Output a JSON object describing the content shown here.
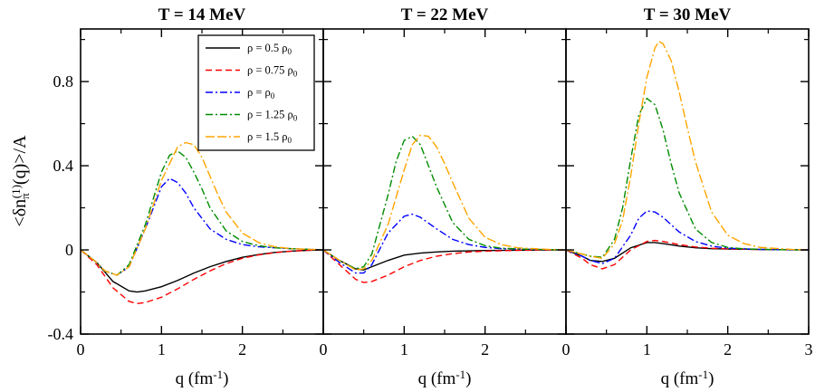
{
  "chart_data": {
    "type": "line",
    "ylabel": {
      "main": "<δn",
      "sub": "π",
      "sup": "(1)",
      "rest": "(q)>/A"
    },
    "xlabel": {
      "main": "q (fm",
      "sup": "-1",
      "rest": ")"
    },
    "xlim": [
      0,
      3
    ],
    "ylim": [
      -0.4,
      1.05
    ],
    "x_ticks": [
      0,
      1,
      2,
      3
    ],
    "y_ticks": [
      -0.4,
      0,
      0.4,
      0.8
    ],
    "x_tick_labels": [
      "0",
      "1",
      "2",
      "3"
    ],
    "y_tick_labels": [
      "-0.4",
      "0",
      "0.4",
      "0.8"
    ],
    "legend": {
      "location": "top-right of first panel",
      "entries": [
        {
          "pre": "ρ = 0.5 ρ",
          "sub": "0"
        },
        {
          "pre": "ρ = 0.75 ρ",
          "sub": "0"
        },
        {
          "pre": "ρ = ρ",
          "sub": "0"
        },
        {
          "pre": "ρ = 1.25 ρ",
          "sub": "0"
        },
        {
          "pre": "ρ = 1.5 ρ",
          "sub": "0"
        }
      ]
    },
    "series_styles": [
      {
        "name": "ρ = 0.5 ρ0",
        "color": "#000000",
        "dash": "solid"
      },
      {
        "name": "ρ = 0.75 ρ0",
        "color": "#ff0000",
        "dash": "dashed"
      },
      {
        "name": "ρ = ρ0",
        "color": "#0000ff",
        "dash": "dash-dot"
      },
      {
        "name": "ρ = 1.25 ρ0",
        "color": "#008c00",
        "dash": "dash-dot"
      },
      {
        "name": "ρ = 1.5 ρ0",
        "color": "#ffa500",
        "dash": "dash-dash-dot"
      }
    ],
    "panels": [
      {
        "title": "T = 14 MeV",
        "series": [
          {
            "name": "ρ = 0.5 ρ0",
            "x": [
              0,
              0.2,
              0.4,
              0.6,
              0.7,
              0.8,
              1.0,
              1.2,
              1.4,
              1.6,
              1.8,
              2.0,
              2.2,
              2.4,
              2.6,
              2.8,
              3.0
            ],
            "y": [
              0,
              -0.06,
              -0.15,
              -0.195,
              -0.2,
              -0.195,
              -0.175,
              -0.145,
              -0.11,
              -0.08,
              -0.055,
              -0.035,
              -0.022,
              -0.012,
              -0.006,
              -0.002,
              0
            ]
          },
          {
            "name": "ρ = 0.75 ρ0",
            "x": [
              0,
              0.2,
              0.4,
              0.6,
              0.7,
              0.8,
              1.0,
              1.2,
              1.4,
              1.6,
              1.8,
              2.0,
              2.2,
              2.4,
              2.6,
              2.8,
              3.0
            ],
            "y": [
              0,
              -0.07,
              -0.18,
              -0.245,
              -0.255,
              -0.25,
              -0.225,
              -0.185,
              -0.14,
              -0.1,
              -0.065,
              -0.04,
              -0.024,
              -0.013,
              -0.006,
              -0.002,
              0
            ]
          },
          {
            "name": "ρ = ρ0",
            "x": [
              0,
              0.2,
              0.3,
              0.45,
              0.6,
              0.8,
              0.9,
              1.0,
              1.1,
              1.2,
              1.3,
              1.4,
              1.5,
              1.6,
              1.8,
              2.0,
              2.2,
              2.4,
              2.6,
              3.0
            ],
            "y": [
              0,
              -0.06,
              -0.1,
              -0.12,
              -0.08,
              0.1,
              0.2,
              0.3,
              0.34,
              0.32,
              0.27,
              0.2,
              0.15,
              0.1,
              0.05,
              0.025,
              0.015,
              0.01,
              0.006,
              0
            ]
          },
          {
            "name": "ρ = 1.25 ρ0",
            "x": [
              0,
              0.2,
              0.3,
              0.45,
              0.6,
              0.8,
              1.0,
              1.1,
              1.2,
              1.3,
              1.4,
              1.5,
              1.6,
              1.8,
              2.0,
              2.2,
              2.4,
              2.6,
              3.0
            ],
            "y": [
              0,
              -0.06,
              -0.1,
              -0.12,
              -0.07,
              0.12,
              0.37,
              0.45,
              0.47,
              0.44,
              0.37,
              0.29,
              0.2,
              0.09,
              0.04,
              0.02,
              0.01,
              0.006,
              0
            ]
          },
          {
            "name": "ρ = 1.5 ρ0",
            "x": [
              0,
              0.2,
              0.3,
              0.45,
              0.6,
              0.8,
              1.0,
              1.2,
              1.3,
              1.4,
              1.5,
              1.6,
              1.7,
              1.8,
              2.0,
              2.2,
              2.4,
              2.6,
              3.0
            ],
            "y": [
              0,
              -0.06,
              -0.1,
              -0.12,
              -0.08,
              0.1,
              0.33,
              0.49,
              0.51,
              0.5,
              0.44,
              0.35,
              0.26,
              0.18,
              0.08,
              0.035,
              0.015,
              0.006,
              0
            ]
          }
        ]
      },
      {
        "title": "T = 22 MeV",
        "series": [
          {
            "name": "ρ = 0.5 ρ0",
            "x": [
              0,
              0.2,
              0.4,
              0.5,
              0.6,
              0.8,
              1.0,
              1.2,
              1.4,
              1.6,
              2.0,
              2.5,
              3.0
            ],
            "y": [
              0,
              -0.05,
              -0.09,
              -0.095,
              -0.08,
              -0.05,
              -0.025,
              -0.015,
              -0.01,
              -0.006,
              -0.003,
              -0.001,
              0
            ]
          },
          {
            "name": "ρ = 0.75 ρ0",
            "x": [
              0,
              0.2,
              0.4,
              0.5,
              0.6,
              0.8,
              1.0,
              1.2,
              1.4,
              1.6,
              1.8,
              2.0,
              2.4,
              3.0
            ],
            "y": [
              0,
              -0.07,
              -0.14,
              -0.155,
              -0.15,
              -0.12,
              -0.08,
              -0.05,
              -0.03,
              -0.018,
              -0.01,
              -0.006,
              -0.002,
              0
            ]
          },
          {
            "name": "ρ = ρ0",
            "x": [
              0,
              0.2,
              0.4,
              0.5,
              0.6,
              0.8,
              1.0,
              1.1,
              1.2,
              1.4,
              1.6,
              1.8,
              2.0,
              2.2,
              2.6,
              3.0
            ],
            "y": [
              0,
              -0.06,
              -0.11,
              -0.11,
              -0.07,
              0.08,
              0.16,
              0.17,
              0.155,
              0.1,
              0.05,
              0.025,
              0.012,
              0.006,
              0.002,
              0
            ]
          },
          {
            "name": "ρ = 1.25 ρ0",
            "x": [
              0,
              0.2,
              0.4,
              0.5,
              0.6,
              0.8,
              0.9,
              1.0,
              1.1,
              1.2,
              1.3,
              1.4,
              1.6,
              1.8,
              2.0,
              2.2,
              2.6,
              3.0
            ],
            "y": [
              0,
              -0.05,
              -0.09,
              -0.08,
              -0.02,
              0.26,
              0.42,
              0.52,
              0.54,
              0.5,
              0.4,
              0.3,
              0.13,
              0.05,
              0.02,
              0.008,
              0.002,
              0
            ]
          },
          {
            "name": "ρ = 1.5 ρ0",
            "x": [
              0,
              0.2,
              0.4,
              0.5,
              0.6,
              0.8,
              1.0,
              1.1,
              1.2,
              1.3,
              1.4,
              1.5,
              1.6,
              1.8,
              2.0,
              2.2,
              2.4,
              2.8,
              3.0
            ],
            "y": [
              0,
              -0.05,
              -0.095,
              -0.09,
              -0.05,
              0.12,
              0.38,
              0.5,
              0.545,
              0.54,
              0.49,
              0.41,
              0.32,
              0.15,
              0.06,
              0.025,
              0.01,
              0.002,
              0
            ]
          }
        ]
      },
      {
        "title": "T = 30 MeV",
        "series": [
          {
            "name": "ρ = 0.5 ρ0",
            "x": [
              0,
              0.2,
              0.3,
              0.45,
              0.6,
              0.8,
              1.0,
              1.1,
              1.2,
              1.4,
              1.6,
              1.8,
              2.0,
              2.4,
              3.0
            ],
            "y": [
              0,
              -0.03,
              -0.05,
              -0.055,
              -0.04,
              0.01,
              0.035,
              0.035,
              0.03,
              0.018,
              0.01,
              0.006,
              0.004,
              0.002,
              0
            ]
          },
          {
            "name": "ρ = 0.75 ρ0",
            "x": [
              0,
              0.2,
              0.3,
              0.45,
              0.6,
              0.8,
              1.0,
              1.1,
              1.2,
              1.4,
              1.6,
              1.8,
              2.0,
              2.4,
              3.0
            ],
            "y": [
              0,
              -0.04,
              -0.07,
              -0.09,
              -0.07,
              0,
              0.04,
              0.045,
              0.04,
              0.025,
              0.014,
              0.008,
              0.005,
              0.002,
              0
            ]
          },
          {
            "name": "ρ = ρ0",
            "x": [
              0,
              0.2,
              0.3,
              0.45,
              0.6,
              0.8,
              0.9,
              1.0,
              1.1,
              1.2,
              1.3,
              1.4,
              1.6,
              1.8,
              2.0,
              2.4,
              3.0
            ],
            "y": [
              0,
              -0.03,
              -0.05,
              -0.065,
              -0.04,
              0.07,
              0.15,
              0.185,
              0.18,
              0.155,
              0.12,
              0.085,
              0.04,
              0.018,
              0.008,
              0.002,
              0
            ]
          },
          {
            "name": "ρ = 1.25 ρ0",
            "x": [
              0,
              0.2,
              0.3,
              0.45,
              0.6,
              0.7,
              0.8,
              0.9,
              1.0,
              1.1,
              1.2,
              1.3,
              1.4,
              1.6,
              1.8,
              2.0,
              2.2,
              2.6,
              3.0
            ],
            "y": [
              0,
              -0.02,
              -0.03,
              -0.035,
              0.05,
              0.2,
              0.43,
              0.64,
              0.72,
              0.69,
              0.57,
              0.41,
              0.27,
              0.1,
              0.035,
              0.012,
              0.005,
              0.001,
              0
            ]
          },
          {
            "name": "ρ = 1.5 ρ0",
            "x": [
              0,
              0.2,
              0.3,
              0.45,
              0.6,
              0.7,
              0.8,
              0.9,
              1.0,
              1.1,
              1.15,
              1.2,
              1.3,
              1.4,
              1.5,
              1.6,
              1.8,
              2.0,
              2.2,
              2.4,
              2.8,
              3.0
            ],
            "y": [
              0,
              -0.02,
              -0.03,
              -0.04,
              0.03,
              0.14,
              0.35,
              0.6,
              0.82,
              0.96,
              0.99,
              0.98,
              0.9,
              0.75,
              0.58,
              0.42,
              0.18,
              0.07,
              0.03,
              0.012,
              0.002,
              0
            ]
          }
        ]
      }
    ]
  }
}
